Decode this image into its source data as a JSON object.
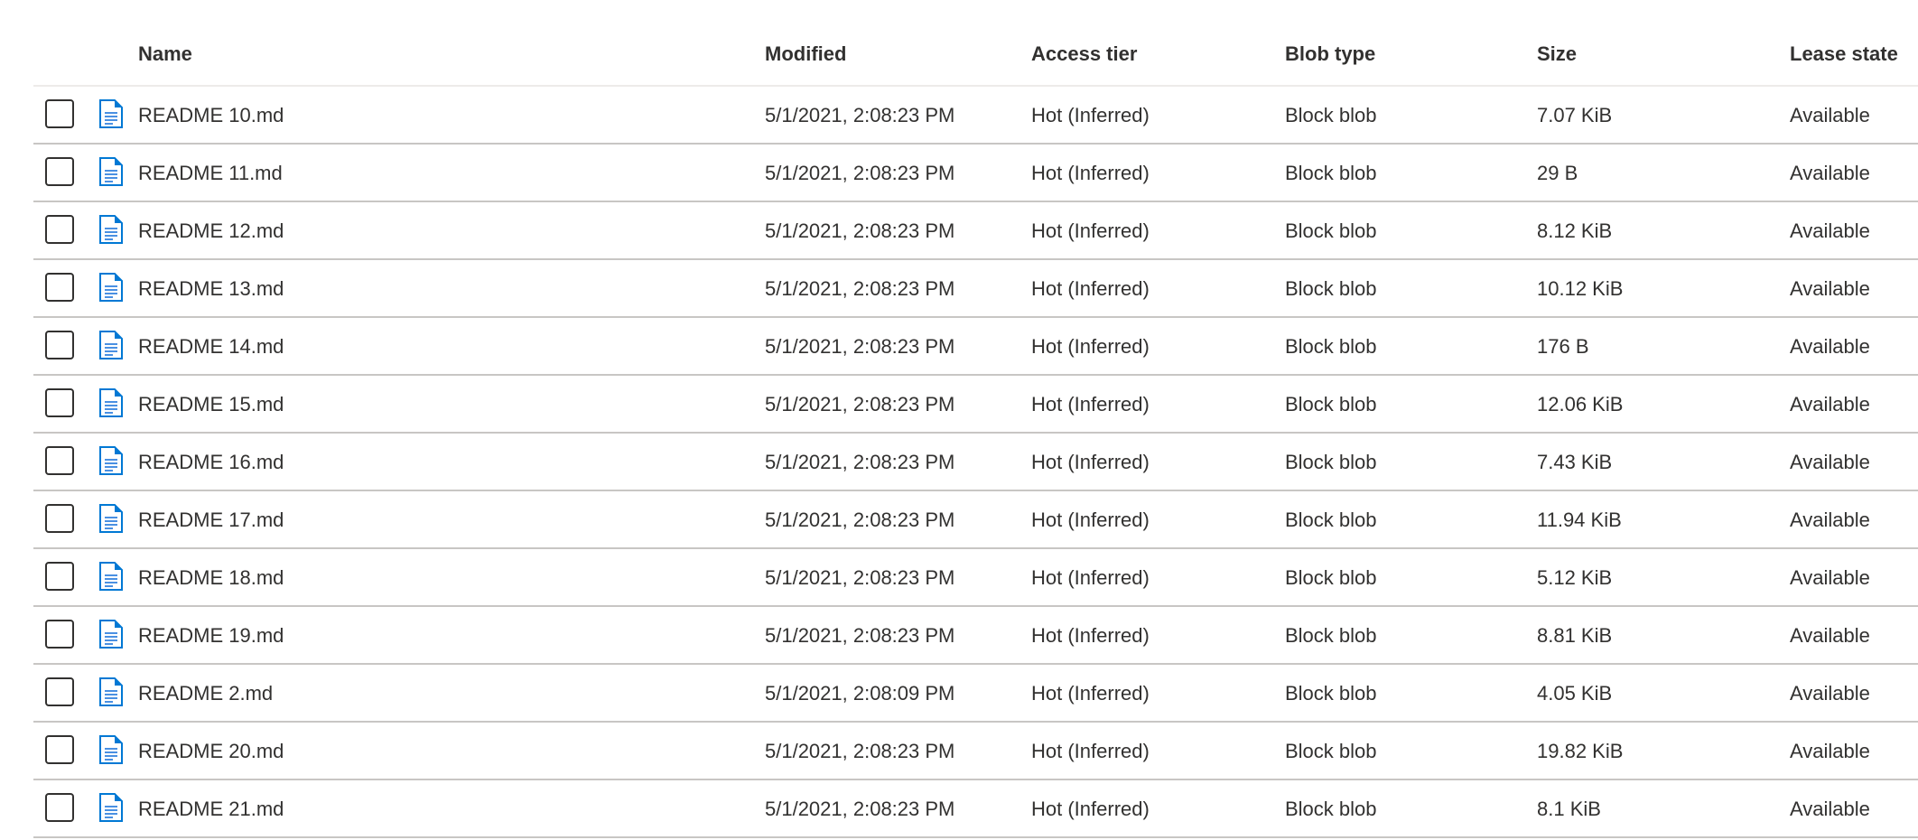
{
  "columns": {
    "name": "Name",
    "modified": "Modified",
    "access_tier": "Access tier",
    "blob_type": "Blob type",
    "size": "Size",
    "lease_state": "Lease state"
  },
  "file_icon": "document-icon",
  "accent_color": "#0078d4",
  "rows": [
    {
      "name": "README 10.md",
      "modified": "5/1/2021, 2:08:23 PM",
      "access_tier": "Hot (Inferred)",
      "blob_type": "Block blob",
      "size": "7.07 KiB",
      "lease_state": "Available"
    },
    {
      "name": "README 11.md",
      "modified": "5/1/2021, 2:08:23 PM",
      "access_tier": "Hot (Inferred)",
      "blob_type": "Block blob",
      "size": "29 B",
      "lease_state": "Available"
    },
    {
      "name": "README 12.md",
      "modified": "5/1/2021, 2:08:23 PM",
      "access_tier": "Hot (Inferred)",
      "blob_type": "Block blob",
      "size": "8.12 KiB",
      "lease_state": "Available"
    },
    {
      "name": "README 13.md",
      "modified": "5/1/2021, 2:08:23 PM",
      "access_tier": "Hot (Inferred)",
      "blob_type": "Block blob",
      "size": "10.12 KiB",
      "lease_state": "Available"
    },
    {
      "name": "README 14.md",
      "modified": "5/1/2021, 2:08:23 PM",
      "access_tier": "Hot (Inferred)",
      "blob_type": "Block blob",
      "size": "176 B",
      "lease_state": "Available"
    },
    {
      "name": "README 15.md",
      "modified": "5/1/2021, 2:08:23 PM",
      "access_tier": "Hot (Inferred)",
      "blob_type": "Block blob",
      "size": "12.06 KiB",
      "lease_state": "Available"
    },
    {
      "name": "README 16.md",
      "modified": "5/1/2021, 2:08:23 PM",
      "access_tier": "Hot (Inferred)",
      "blob_type": "Block blob",
      "size": "7.43 KiB",
      "lease_state": "Available"
    },
    {
      "name": "README 17.md",
      "modified": "5/1/2021, 2:08:23 PM",
      "access_tier": "Hot (Inferred)",
      "blob_type": "Block blob",
      "size": "11.94 KiB",
      "lease_state": "Available"
    },
    {
      "name": "README 18.md",
      "modified": "5/1/2021, 2:08:23 PM",
      "access_tier": "Hot (Inferred)",
      "blob_type": "Block blob",
      "size": "5.12 KiB",
      "lease_state": "Available"
    },
    {
      "name": "README 19.md",
      "modified": "5/1/2021, 2:08:23 PM",
      "access_tier": "Hot (Inferred)",
      "blob_type": "Block blob",
      "size": "8.81 KiB",
      "lease_state": "Available"
    },
    {
      "name": "README 2.md",
      "modified": "5/1/2021, 2:08:09 PM",
      "access_tier": "Hot (Inferred)",
      "blob_type": "Block blob",
      "size": "4.05 KiB",
      "lease_state": "Available"
    },
    {
      "name": "README 20.md",
      "modified": "5/1/2021, 2:08:23 PM",
      "access_tier": "Hot (Inferred)",
      "blob_type": "Block blob",
      "size": "19.82 KiB",
      "lease_state": "Available"
    },
    {
      "name": "README 21.md",
      "modified": "5/1/2021, 2:08:23 PM",
      "access_tier": "Hot (Inferred)",
      "blob_type": "Block blob",
      "size": "8.1 KiB",
      "lease_state": "Available"
    }
  ]
}
